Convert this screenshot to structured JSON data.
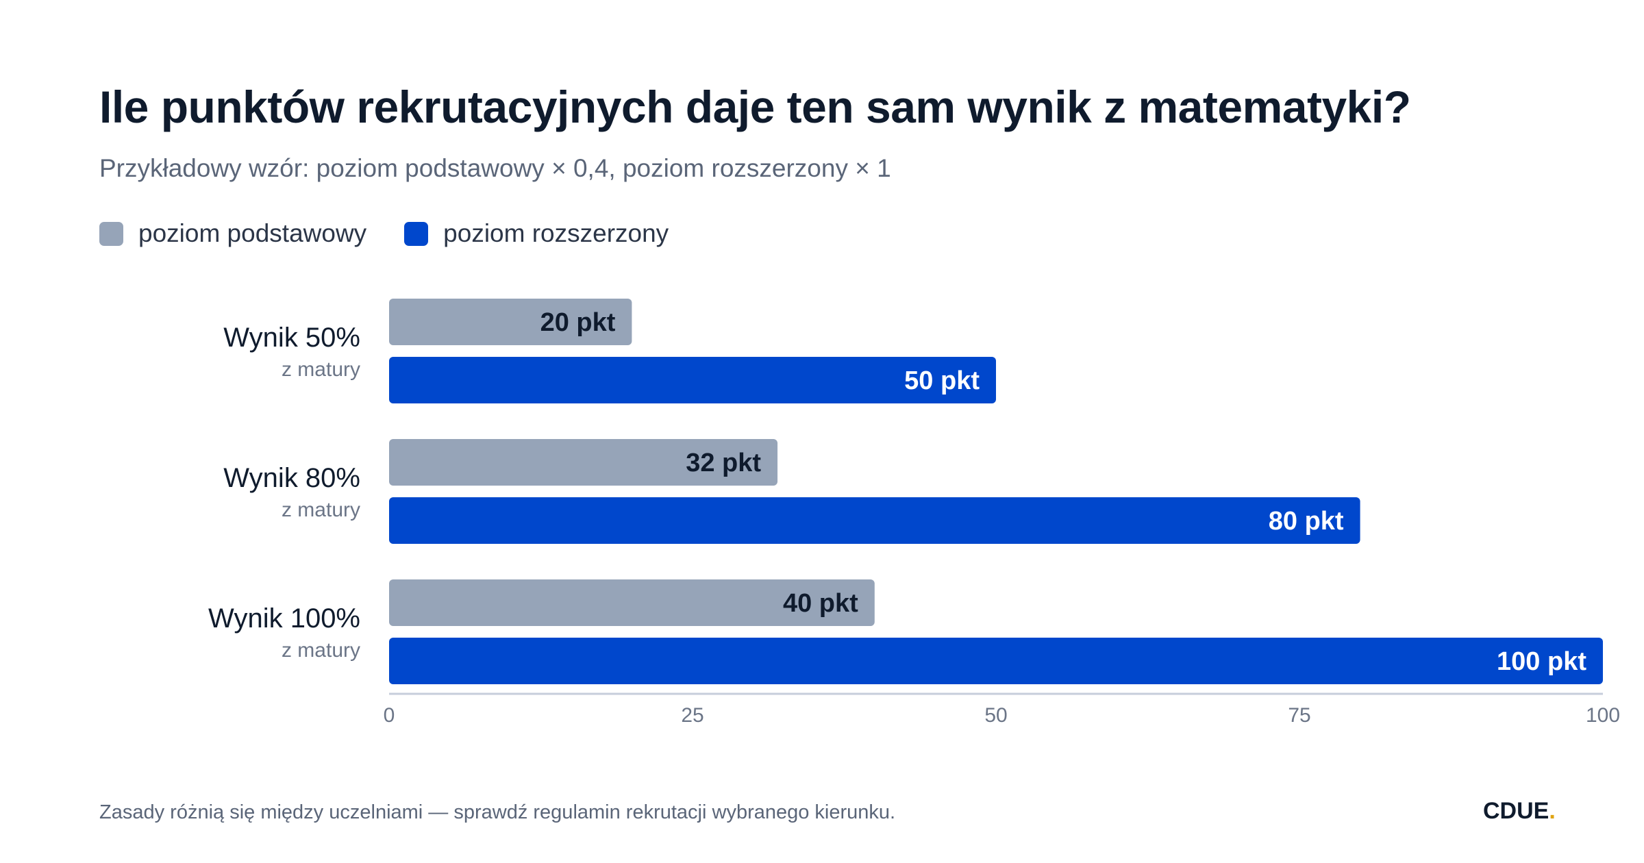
{
  "title": "Ile punktów rekrutacyjnych daje ten sam wynik z matematyki?",
  "subtitle": "Przykładowy wzór: poziom podstawowy × 0,4, poziom rozszerzony × 1",
  "legend": [
    {
      "label": "poziom podstawowy",
      "color": "#96a4b8"
    },
    {
      "label": "poziom rozszerzony",
      "color": "#0047cc"
    }
  ],
  "chart_data": {
    "type": "bar",
    "orientation": "horizontal",
    "categories": [
      {
        "label": "Wynik 50%",
        "sublabel": "z matury"
      },
      {
        "label": "Wynik 80%",
        "sublabel": "z matury"
      },
      {
        "label": "Wynik 100%",
        "sublabel": "z matury"
      }
    ],
    "series": [
      {
        "name": "poziom podstawowy",
        "color": "#96a4b8",
        "values": [
          20,
          32,
          40
        ],
        "value_labels": [
          "20 pkt",
          "32 pkt",
          "40 pkt"
        ]
      },
      {
        "name": "poziom rozszerzony",
        "color": "#0047cc",
        "values": [
          50,
          80,
          100
        ],
        "value_labels": [
          "50 pkt",
          "80 pkt",
          "100 pkt"
        ]
      }
    ],
    "xlim": [
      0,
      100
    ],
    "xticks": [
      0,
      25,
      50,
      75,
      100
    ],
    "grid": false,
    "legend_position": "top-left"
  },
  "footnote": "Zasady różnią się między uczelniami — sprawdź regulamin rekrutacji wybranego kierunku.",
  "brand": {
    "name": "CDUE",
    "dot": "."
  }
}
